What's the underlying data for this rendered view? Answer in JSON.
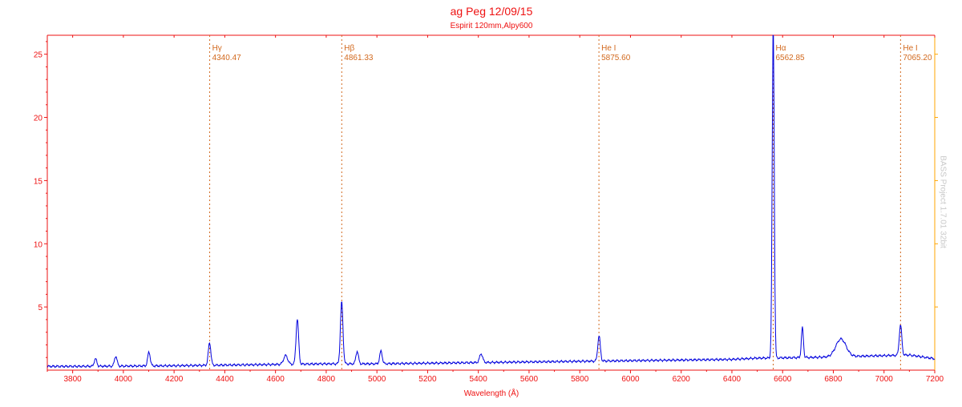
{
  "chart_data": {
    "type": "line",
    "title": "ag Peg 12/09/15",
    "subtitle": "Espirit 120mm,Alpy600",
    "xlabel": "Wavelength (Å)",
    "ylabel": "",
    "watermark": "BASS Project 1.7.01 32bit",
    "xlim": [
      3700,
      7200
    ],
    "ylim": [
      0,
      26.5
    ],
    "x_ticks": [
      3800,
      4000,
      4200,
      4400,
      4600,
      4800,
      5000,
      5200,
      5400,
      5600,
      5800,
      6000,
      6200,
      6400,
      6600,
      6800,
      7000,
      7200
    ],
    "y_ticks": [
      5,
      10,
      15,
      20,
      25
    ],
    "grid": false,
    "colors": {
      "axis": "#ee1111",
      "right_axis": "#ffa500",
      "series": "#0000dd",
      "marker": "#d2691e"
    },
    "reference_lines": [
      {
        "name": "Hγ",
        "wavelength_label": "4340.47",
        "x": 4340.47
      },
      {
        "name": "Hβ",
        "wavelength_label": "4861.33",
        "x": 4861.33
      },
      {
        "name": "He I",
        "wavelength_label": "5875.60",
        "x": 5875.6
      },
      {
        "name": "Hα",
        "wavelength_label": "6562.85",
        "x": 6562.85
      },
      {
        "name": "He I",
        "wavelength_label": "7065.20",
        "x": 7065.2
      }
    ],
    "series": [
      {
        "continuum": [
          [
            3700,
            0.3
          ],
          [
            3800,
            0.3
          ],
          [
            4000,
            0.32
          ],
          [
            4200,
            0.35
          ],
          [
            4400,
            0.4
          ],
          [
            4600,
            0.45
          ],
          [
            4800,
            0.5
          ],
          [
            5000,
            0.5
          ],
          [
            5200,
            0.55
          ],
          [
            5400,
            0.6
          ],
          [
            5600,
            0.65
          ],
          [
            5800,
            0.7
          ],
          [
            6000,
            0.75
          ],
          [
            6200,
            0.8
          ],
          [
            6400,
            0.85
          ],
          [
            6500,
            0.95
          ],
          [
            6700,
            1.0
          ],
          [
            6900,
            1.1
          ],
          [
            7100,
            1.2
          ],
          [
            7200,
            0.9
          ]
        ],
        "emission_lines": [
          {
            "x": 3890,
            "peak": 0.6,
            "width": 5
          },
          {
            "x": 3970,
            "peak": 0.8,
            "width": 5
          },
          {
            "x": 4101,
            "peak": 1.1,
            "width": 5
          },
          {
            "x": 4340,
            "peak": 1.8,
            "width": 5
          },
          {
            "x": 4640,
            "peak": 0.7,
            "width": 8
          },
          {
            "x": 4686,
            "peak": 3.6,
            "width": 5
          },
          {
            "x": 4861,
            "peak": 4.9,
            "width": 5
          },
          {
            "x": 4922,
            "peak": 1.0,
            "width": 5
          },
          {
            "x": 5016,
            "peak": 1.0,
            "width": 5
          },
          {
            "x": 5411,
            "peak": 0.7,
            "width": 6
          },
          {
            "x": 5876,
            "peak": 2.0,
            "width": 5
          },
          {
            "x": 6563,
            "peak": 26.3,
            "width": 4
          },
          {
            "x": 6678,
            "peak": 2.4,
            "width": 4
          },
          {
            "x": 6830,
            "peak": 1.4,
            "width": 20
          },
          {
            "x": 7065,
            "peak": 2.4,
            "width": 5
          }
        ]
      }
    ]
  }
}
